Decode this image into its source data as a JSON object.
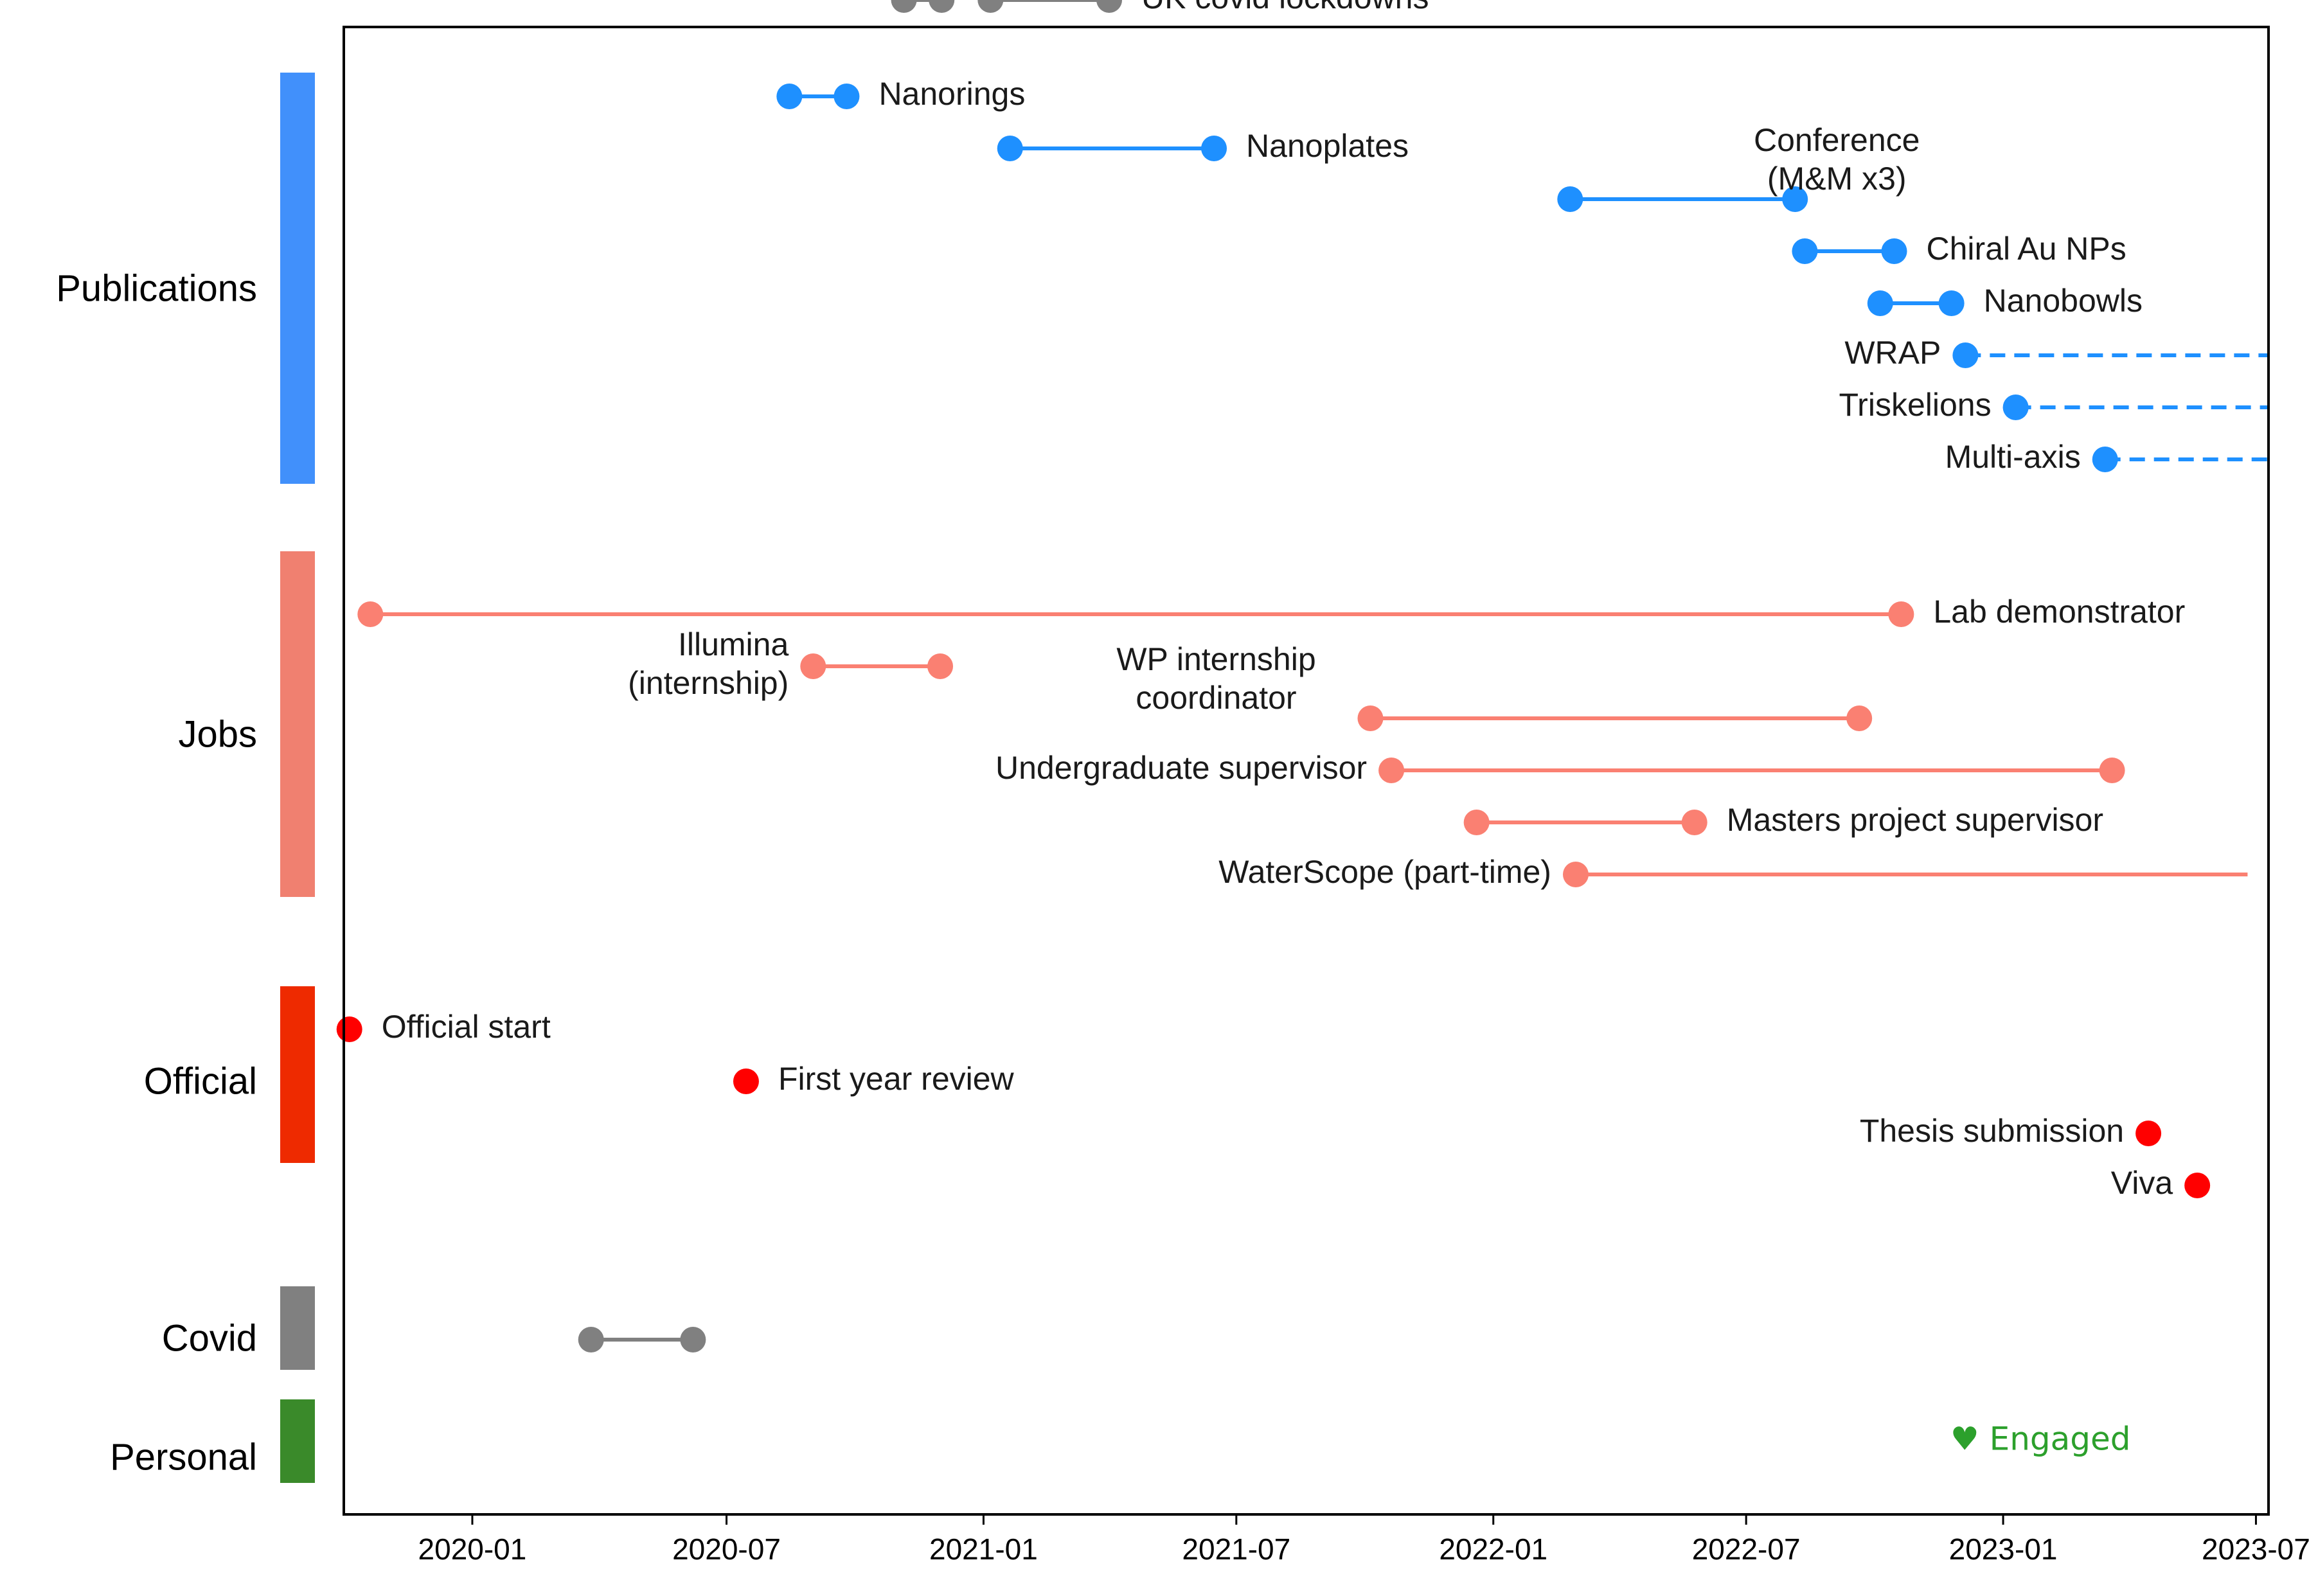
{
  "chart_data": {
    "type": "timeline",
    "x_axis": {
      "type": "date",
      "range": [
        "2019-10-01",
        "2023-07-10"
      ],
      "ticks": [
        "2020-01",
        "2020-07",
        "2021-01",
        "2021-07",
        "2022-01",
        "2022-07",
        "2023-01",
        "2023-07"
      ]
    },
    "grid": false,
    "categories": [
      {
        "name": "Publications",
        "color": "#4190fb"
      },
      {
        "name": "Jobs",
        "color": "#f08070"
      },
      {
        "name": "Official",
        "color": "#ee2a00"
      },
      {
        "name": "Covid",
        "color": "#808080"
      },
      {
        "name": "Personal",
        "color": "#3a8a2a"
      }
    ],
    "series": [
      {
        "category": "Publications",
        "color": "#1e90ff",
        "events": [
          {
            "label": "Nanorings",
            "start": "2020-08-15",
            "end": "2020-09-25",
            "label_side": "right"
          },
          {
            "label": "Nanoplates",
            "start": "2021-01-20",
            "end": "2021-06-15",
            "label_side": "right"
          },
          {
            "label": "Conference\n(M&M x3)",
            "start": "2022-02-25",
            "end": "2022-08-05",
            "label_side": "above"
          },
          {
            "label": "Chiral Au NPs",
            "start": "2022-08-12",
            "end": "2022-10-15",
            "label_side": "right"
          },
          {
            "label": "Nanobowls",
            "start": "2022-10-05",
            "end": "2022-11-25",
            "label_side": "right"
          },
          {
            "label": "WRAP",
            "start": "2022-12-05",
            "end": "2023-07-10",
            "ongoing": true,
            "label_side": "left"
          },
          {
            "label": "Triskelions",
            "start": "2023-01-10",
            "end": "2023-07-10",
            "ongoing": true,
            "label_side": "left"
          },
          {
            "label": "Multi-axis",
            "start": "2023-03-15",
            "end": "2023-07-10",
            "ongoing": true,
            "label_side": "left"
          }
        ]
      },
      {
        "category": "Jobs",
        "color": "#fa8072",
        "events": [
          {
            "label": "Lab demonstrator",
            "start": "2019-10-20",
            "end": "2022-10-20",
            "label_side": "right"
          },
          {
            "label": "Illumina\n(internship)",
            "start": "2020-09-01",
            "end": "2020-12-01",
            "label_side": "left"
          },
          {
            "label": "WP internship\ncoordinator",
            "start": "2021-10-05",
            "end": "2022-09-20",
            "label_side": "above"
          },
          {
            "label": "Undergraduate supervisor",
            "start": "2021-10-20",
            "end": "2023-03-20",
            "label_side": "left"
          },
          {
            "label": "Masters project supervisor",
            "start": "2021-12-20",
            "end": "2022-05-25",
            "label_side": "right"
          },
          {
            "label": "WaterScope (part-time)",
            "start": "2022-03-01",
            "end": "2023-06-25",
            "no_end_marker": true,
            "label_side": "left"
          }
        ]
      },
      {
        "category": "Official",
        "color": "#ff0000",
        "events": [
          {
            "label": "Official start",
            "start": "2019-10-05",
            "label_side": "right"
          },
          {
            "label": "First year review",
            "start": "2020-07-15",
            "label_side": "right"
          },
          {
            "label": "Thesis submission",
            "start": "2023-04-15",
            "label_side": "left"
          },
          {
            "label": "Viva",
            "start": "2023-05-20",
            "label_side": "left"
          }
        ]
      },
      {
        "category": "Covid",
        "color": "#808080",
        "events": [
          {
            "label": "",
            "start": "2020-03-26",
            "end": "2020-06-07"
          },
          {
            "label": "",
            "start": "2020-11-05",
            "end": "2020-12-02"
          },
          {
            "label": "UK covid lockdowns",
            "start": "2021-01-06",
            "end": "2021-04-01",
            "label_side": "right"
          }
        ]
      }
    ],
    "annotations": [
      {
        "category": "Personal",
        "text": "♥ Engaged",
        "date": "2022-11-15",
        "color": "#2ca02c"
      }
    ]
  }
}
